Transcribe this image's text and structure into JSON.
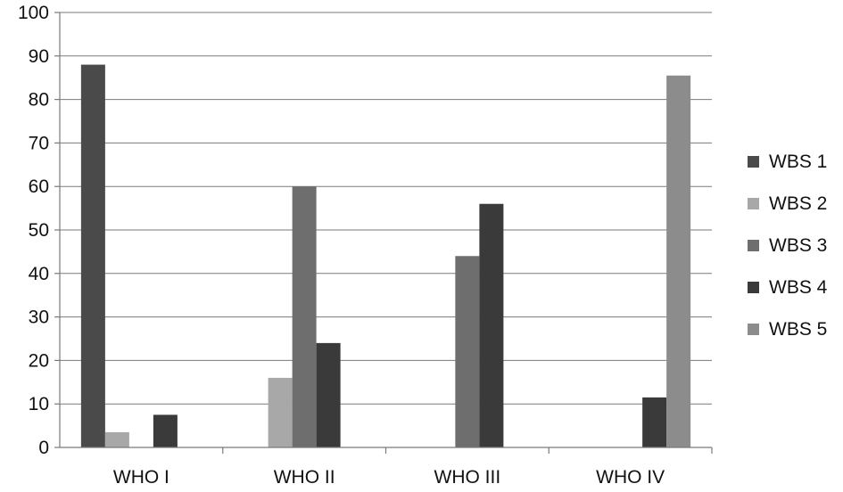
{
  "chart_data": {
    "type": "bar",
    "categories": [
      "WHO I",
      "WHO II",
      "WHO III",
      "WHO IV"
    ],
    "series": [
      {
        "name": "WBS 1",
        "values": [
          88,
          0,
          0,
          0
        ],
        "color": "#4a4a4a"
      },
      {
        "name": "WBS 2",
        "values": [
          3.5,
          16,
          0,
          0
        ],
        "color": "#a8a8a8"
      },
      {
        "name": "WBS 3",
        "values": [
          0,
          60,
          44,
          0
        ],
        "color": "#6e6e6e"
      },
      {
        "name": "WBS 4",
        "values": [
          7.5,
          24,
          56,
          11.5
        ],
        "color": "#3a3a3a"
      },
      {
        "name": "WBS 5",
        "values": [
          0,
          0,
          0,
          85.5
        ],
        "color": "#8c8c8c"
      }
    ],
    "title": "",
    "xlabel": "",
    "ylabel": "",
    "ylim": [
      0,
      100
    ],
    "yticks": [
      0,
      10,
      20,
      30,
      40,
      50,
      60,
      70,
      80,
      90,
      100
    ],
    "grid": true,
    "legend": "right"
  }
}
